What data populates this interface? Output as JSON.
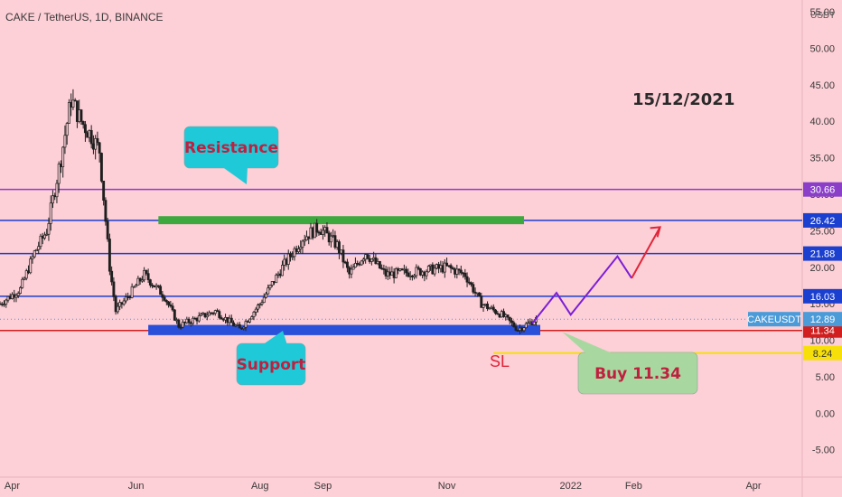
{
  "header": {
    "symbol_line": "CAKE / TetherUS, 1D, BINANCE",
    "currency": "USDT"
  },
  "date_note": "15/12/2021",
  "colors": {
    "background": "#fdcfd6",
    "candle_up": "#1f1f1f",
    "candle_down": "#1f1f1f",
    "line_purple": "#8b3fc9",
    "line_blue": "#1b3fcf",
    "line_red": "#d11f1f",
    "line_yellow": "#f7e00a",
    "callout_teal": "#1fc9d8",
    "callout_green": "#a8d8a0",
    "projection_purple": "#7a1ed8",
    "projection_red": "#e0253a"
  },
  "chart_data": {
    "type": "candlestick",
    "title": "CAKE / TetherUS, 1D, BINANCE",
    "ylim": [
      -9,
      56
    ],
    "y_ticks": [
      -5,
      0,
      5,
      10,
      15,
      20,
      25,
      30,
      35,
      40,
      45,
      50,
      55
    ],
    "y_tick_labels": [
      "-5.00",
      "0.00",
      "5.00",
      "10.00",
      "15.00",
      "20.00",
      "25.00",
      "30.00",
      "35.00",
      "40.00",
      "45.00",
      "50.00",
      "55.00"
    ],
    "x_range": [
      "2021-03-26",
      "2022-04-25"
    ],
    "x_ticks": [
      {
        "date": "2021-04-01",
        "label": "Apr"
      },
      {
        "date": "2021-06-01",
        "label": "Jun"
      },
      {
        "date": "2021-08-01",
        "label": "Aug"
      },
      {
        "date": "2021-09-01",
        "label": "Sep"
      },
      {
        "date": "2021-11-01",
        "label": "Nov"
      },
      {
        "date": "2022-01-01",
        "label": "2022"
      },
      {
        "date": "2022-02-01",
        "label": "Feb"
      },
      {
        "date": "2022-04-01",
        "label": "Apr"
      }
    ],
    "price_path": [
      {
        "date": "2021-03-26",
        "price": 15
      },
      {
        "date": "2021-04-05",
        "price": 17
      },
      {
        "date": "2021-04-12",
        "price": 22
      },
      {
        "date": "2021-04-18",
        "price": 25
      },
      {
        "date": "2021-04-25",
        "price": 35
      },
      {
        "date": "2021-04-30",
        "price": 43
      },
      {
        "date": "2021-05-05",
        "price": 40
      },
      {
        "date": "2021-05-10",
        "price": 38
      },
      {
        "date": "2021-05-14",
        "price": 36
      },
      {
        "date": "2021-05-19",
        "price": 20
      },
      {
        "date": "2021-05-22",
        "price": 14
      },
      {
        "date": "2021-05-28",
        "price": 16
      },
      {
        "date": "2021-06-05",
        "price": 19
      },
      {
        "date": "2021-06-15",
        "price": 16
      },
      {
        "date": "2021-06-22",
        "price": 12
      },
      {
        "date": "2021-07-01",
        "price": 13
      },
      {
        "date": "2021-07-10",
        "price": 14
      },
      {
        "date": "2021-07-22",
        "price": 11.5
      },
      {
        "date": "2021-08-01",
        "price": 15
      },
      {
        "date": "2021-08-12",
        "price": 20
      },
      {
        "date": "2021-08-22",
        "price": 24
      },
      {
        "date": "2021-08-30",
        "price": 25.5
      },
      {
        "date": "2021-09-08",
        "price": 23
      },
      {
        "date": "2021-09-14",
        "price": 19
      },
      {
        "date": "2021-09-22",
        "price": 22
      },
      {
        "date": "2021-10-02",
        "price": 19
      },
      {
        "date": "2021-10-20",
        "price": 19.5
      },
      {
        "date": "2021-11-01",
        "price": 20
      },
      {
        "date": "2021-11-10",
        "price": 19
      },
      {
        "date": "2021-11-18",
        "price": 15
      },
      {
        "date": "2021-11-28",
        "price": 13.5
      },
      {
        "date": "2021-12-06",
        "price": 11.5
      },
      {
        "date": "2021-12-15",
        "price": 12.89
      }
    ],
    "horizontal_levels": [
      {
        "price": 30.66,
        "color": "#8b3fc9",
        "label": "30.66"
      },
      {
        "price": 26.42,
        "color": "#1b3fcf",
        "label": "26.42"
      },
      {
        "price": 21.88,
        "color": "#1b3fcf",
        "label": "21.88"
      },
      {
        "price": 16.03,
        "color": "#1b3fcf",
        "label": "16.03"
      },
      {
        "price": 11.34,
        "color": "#d11f1f",
        "label": "11.34"
      },
      {
        "price": 8.24,
        "color": "#f7e00a",
        "label": "8.24"
      }
    ],
    "current_price": {
      "price": 12.89,
      "label": "12.89",
      "ticker": "CAKEUSDT"
    },
    "zones": [
      {
        "name": "resistance",
        "from": "2021-06-12",
        "to": "2021-12-09",
        "low": 25.9,
        "high": 27.0,
        "color": "#3da83d"
      },
      {
        "name": "support",
        "from": "2021-06-07",
        "to": "2021-12-17",
        "low": 10.7,
        "high": 12.1,
        "color": "#2a4fd8"
      }
    ],
    "projection": {
      "purple": [
        {
          "date": "2021-12-13",
          "price": 12.3
        },
        {
          "date": "2021-12-25",
          "price": 16.5
        },
        {
          "date": "2022-01-01",
          "price": 13.5
        },
        {
          "date": "2022-01-24",
          "price": 21.5
        },
        {
          "date": "2022-01-31",
          "price": 18.5
        }
      ],
      "red": [
        {
          "date": "2022-01-31",
          "price": 18.5
        },
        {
          "date": "2022-02-14",
          "price": 25.5
        }
      ]
    },
    "annotations": {
      "resistance_label": "Resistance",
      "support_label": "Support",
      "sl_label": "SL",
      "buy_label": "Buy  11.34"
    }
  }
}
